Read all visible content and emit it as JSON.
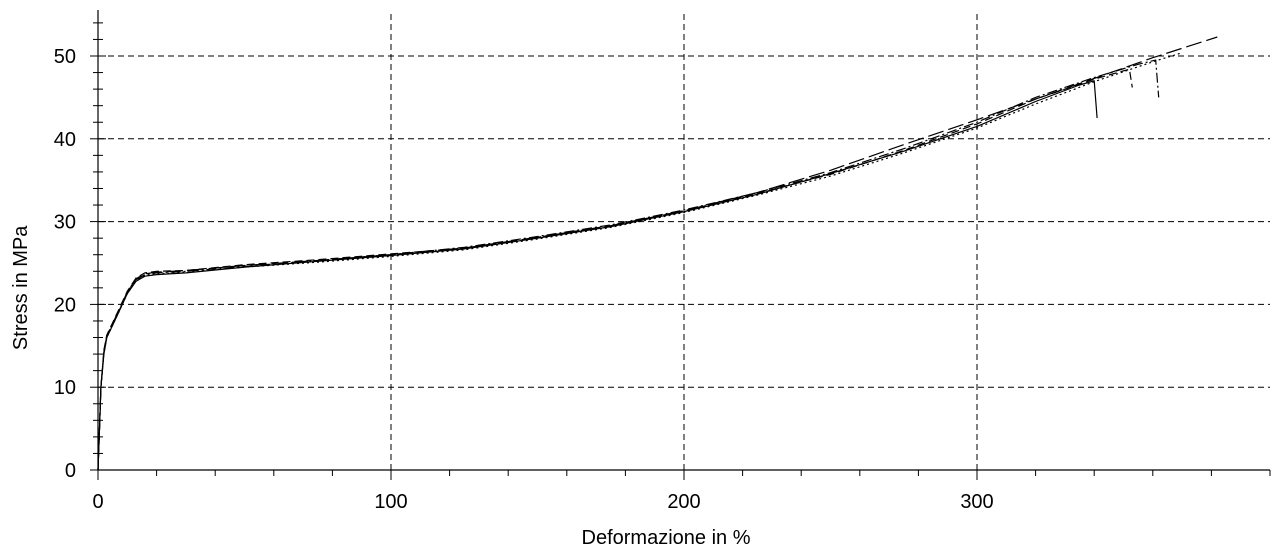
{
  "chart_data": {
    "type": "line",
    "title": "",
    "xlabel": "Deformazione in %",
    "ylabel": "Stress in MPa",
    "xlim": [
      0,
      400
    ],
    "ylim": [
      0,
      55
    ],
    "x_ticks": [
      0,
      100,
      200,
      300
    ],
    "y_ticks": [
      0,
      10,
      20,
      30,
      40,
      50
    ],
    "grid": true,
    "series": [
      {
        "line_style": "solid",
        "x": [
          0,
          0.5,
          1,
          2,
          3,
          5,
          7,
          10,
          13,
          16,
          20,
          30,
          50,
          75,
          100,
          125,
          150,
          175,
          200,
          225,
          250,
          275,
          300,
          320,
          335,
          340,
          341
        ],
        "y": [
          0,
          5,
          10,
          14,
          16,
          17.5,
          19,
          21.3,
          22.8,
          23.4,
          23.6,
          23.8,
          24.5,
          25.2,
          25.9,
          26.7,
          28,
          29.4,
          31.2,
          33.3,
          35.8,
          38.5,
          41.5,
          44.5,
          46.5,
          47,
          42.5
        ]
      },
      {
        "line_style": "dashed",
        "x": [
          0,
          0.5,
          1,
          2,
          3,
          5,
          7,
          10,
          13,
          16,
          20,
          30,
          50,
          75,
          100,
          125,
          150,
          175,
          200,
          225,
          250,
          275,
          300,
          320,
          340,
          352,
          353
        ],
        "y": [
          0,
          5,
          10,
          14.5,
          16.3,
          17.8,
          19.3,
          21.6,
          23.2,
          23.8,
          24,
          24.1,
          24.8,
          25.4,
          26.1,
          26.8,
          28.1,
          29.5,
          31.3,
          33.4,
          35.7,
          38.6,
          41.8,
          44.8,
          47.2,
          48.4,
          46.2
        ]
      },
      {
        "line_style": "dash-dot",
        "x": [
          0,
          0.5,
          1,
          2,
          3,
          5,
          7,
          10,
          13,
          16,
          20,
          30,
          50,
          75,
          100,
          125,
          150,
          175,
          200,
          225,
          250,
          275,
          300,
          320,
          340,
          355,
          361,
          362
        ],
        "y": [
          0,
          5,
          10,
          14.2,
          16.1,
          17.6,
          19.1,
          21.4,
          23,
          23.6,
          23.8,
          24,
          24.6,
          25.3,
          26,
          26.9,
          28.2,
          29.6,
          31.4,
          33.5,
          35.9,
          38.8,
          42,
          45,
          47.4,
          49,
          49.5,
          45
        ]
      },
      {
        "line_style": "long-dash",
        "x": [
          0,
          0.5,
          1,
          2,
          3,
          5,
          7,
          10,
          13,
          16,
          20,
          30,
          50,
          75,
          100,
          125,
          150,
          175,
          200,
          225,
          250,
          275,
          300,
          320,
          340,
          360,
          375,
          382
        ],
        "y": [
          0,
          5,
          10,
          14.3,
          16.2,
          17.7,
          19.2,
          21.5,
          23.1,
          23.7,
          23.9,
          24.1,
          24.7,
          25.3,
          26,
          26.8,
          28.1,
          29.5,
          31.3,
          33.5,
          36.2,
          39.3,
          42.3,
          44.8,
          47.3,
          49.8,
          51.5,
          52.3
        ]
      },
      {
        "line_style": "dotted",
        "x": [
          0,
          0.5,
          1,
          2,
          3,
          5,
          7,
          10,
          13,
          16,
          20,
          30,
          50,
          75,
          100,
          125,
          150,
          175,
          200,
          225,
          250,
          275,
          300,
          320,
          340,
          360,
          370
        ],
        "y": [
          0,
          5,
          10,
          14.1,
          16,
          17.5,
          19,
          21.3,
          22.9,
          23.5,
          23.7,
          23.9,
          24.5,
          25.1,
          25.8,
          26.6,
          27.9,
          29.3,
          31.1,
          33.2,
          35.5,
          38.3,
          41.3,
          44.2,
          46.9,
          49.3,
          50.4
        ]
      }
    ]
  }
}
